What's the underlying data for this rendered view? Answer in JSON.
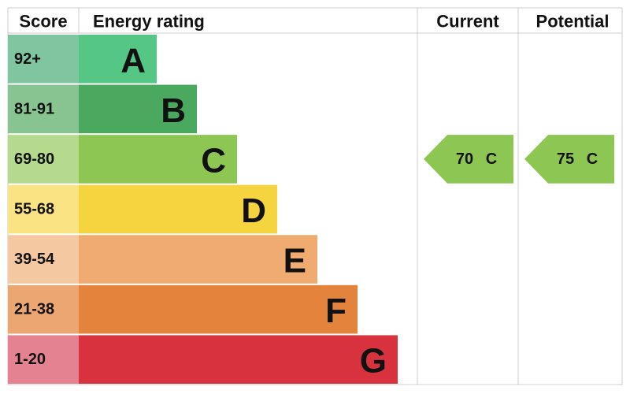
{
  "header": {
    "score": "Score",
    "rating": "Energy rating",
    "current": "Current",
    "potential": "Potential"
  },
  "bands": [
    {
      "score": "92+",
      "rating": "A",
      "color": "#55c683",
      "score_color": "#7fc5a0"
    },
    {
      "score": "81-91",
      "rating": "B",
      "color": "#4aa95f",
      "score_color": "#88c491"
    },
    {
      "score": "69-80",
      "rating": "C",
      "color": "#8dc653",
      "score_color": "#b6da8d"
    },
    {
      "score": "55-68",
      "rating": "D",
      "color": "#f6d440",
      "score_color": "#f9e382"
    },
    {
      "score": "39-54",
      "rating": "E",
      "color": "#efab70",
      "score_color": "#f4c9a2"
    },
    {
      "score": "21-38",
      "rating": "F",
      "color": "#e4833b",
      "score_color": "#eca671"
    },
    {
      "score": "1-20",
      "rating": "G",
      "color": "#d9323f",
      "score_color": "#e48292"
    }
  ],
  "current": {
    "score": 70,
    "rating": "C"
  },
  "potential": {
    "score": 75,
    "rating": "C"
  }
}
